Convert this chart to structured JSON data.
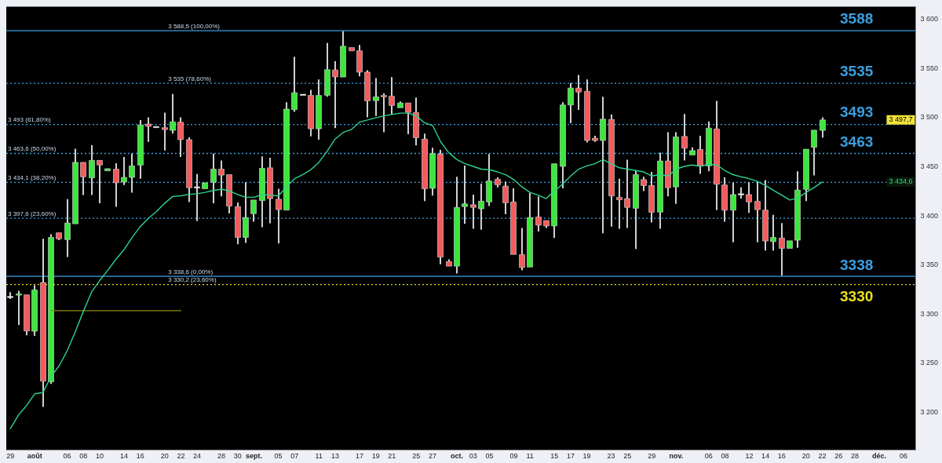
{
  "chart_data": {
    "type": "candlestick",
    "categories": [
      "29",
      null,
      null,
      "août",
      null,
      null,
      null,
      "06",
      null,
      "08",
      null,
      "10",
      null,
      null,
      "14",
      null,
      "16",
      null,
      null,
      "20",
      null,
      "22",
      null,
      "24",
      null,
      null,
      "28",
      null,
      "30",
      null,
      "sept.",
      null,
      null,
      "05",
      null,
      "07",
      null,
      null,
      "11",
      null,
      "13",
      null,
      null,
      "17",
      null,
      "19",
      null,
      "21",
      null,
      null,
      "25",
      null,
      "27",
      null,
      null,
      "oct.",
      null,
      "03",
      null,
      "05",
      null,
      null,
      "09",
      null,
      "11",
      null,
      null,
      "15",
      null,
      "17",
      null,
      "19",
      null,
      null,
      "23",
      null,
      "25",
      null,
      null,
      "29",
      null,
      null,
      "nov.",
      null,
      null,
      null,
      "06",
      null,
      "08",
      null,
      null,
      "12",
      null,
      "14",
      null,
      "16",
      null,
      null,
      "20",
      null,
      "22",
      null,
      "26",
      null,
      "28",
      null,
      null,
      "déc.",
      null,
      null,
      "06",
      null
    ],
    "series": [
      {
        "ohlc": [
          [
            3317.5,
            3322.5,
            3315.5,
            3317.5
          ],
          [
            3319.5,
            3323.8,
            3289,
            3320.5
          ],
          [
            3319.7,
            3320,
            3278.6,
            3283
          ],
          [
            3282.7,
            3329.4,
            3278,
            3324.7
          ],
          [
            3332.2,
            3376.7,
            3205.7,
            3231.9
          ],
          [
            3231.3,
            3381.4,
            3229.1,
            3378.1
          ],
          [
            3382.8,
            3383.6,
            3375.3,
            3376.7
          ],
          [
            3375.9,
            3417,
            3358.1,
            3392.8
          ],
          [
            3392,
            3468.4,
            3391.4,
            3454.5
          ],
          [
            3454.5,
            3455.4,
            3421.2,
            3439.8
          ],
          [
            3438.7,
            3472,
            3421.2,
            3456.5
          ],
          [
            3456.5,
            3457.3,
            3412.8,
            3451.8
          ],
          [
            3445.9,
            3449,
            3444.8,
            3448.1
          ],
          [
            3447.6,
            3453.7,
            3409.2,
            3433.7
          ],
          [
            3434.5,
            3460.1,
            3431.5,
            3439.2
          ],
          [
            3439.2,
            3463.4,
            3423.7,
            3450.9
          ],
          [
            3451.7,
            3497.6,
            3437.9,
            3492.6
          ],
          [
            3493.5,
            3500.4,
            3475.4,
            3491.2
          ],
          [
            3490.4,
            3491.5,
            3489,
            3490.4
          ],
          [
            3489.8,
            3505.1,
            3466.5,
            3487.9
          ],
          [
            3487.1,
            3524,
            3483.7,
            3495.7
          ],
          [
            3495.4,
            3500.4,
            3460.1,
            3477.6
          ],
          [
            3477.6,
            3480,
            3414,
            3428.7
          ],
          [
            3429,
            3442.6,
            3394.8,
            3429
          ],
          [
            3427.6,
            3434.5,
            3427,
            3433.7
          ],
          [
            3434.2,
            3463.4,
            3412.8,
            3447.6
          ],
          [
            3447.6,
            3456.5,
            3419.8,
            3441.5
          ],
          [
            3442,
            3442.5,
            3402.5,
            3410
          ],
          [
            3409.5,
            3413.7,
            3371.1,
            3378.1
          ],
          [
            3378.1,
            3434.2,
            3372.5,
            3398.4
          ],
          [
            3402.3,
            3416.2,
            3394.2,
            3416.2
          ],
          [
            3415.6,
            3460.7,
            3388.6,
            3448.4
          ],
          [
            3449,
            3459.3,
            3392.5,
            3417.6
          ],
          [
            3417,
            3427.6,
            3371.9,
            3406.4
          ],
          [
            3405.9,
            3515.7,
            3405.9,
            3508.7
          ],
          [
            3508.2,
            3562.1,
            3506,
            3525.4
          ],
          [
            3523.2,
            3525,
            3521.5,
            3523.2
          ],
          [
            3522.6,
            3528.2,
            3481,
            3488.7
          ],
          [
            3488.7,
            3538.8,
            3477.6,
            3522.6
          ],
          [
            3522.8,
            3576,
            3521.2,
            3548.8
          ],
          [
            3548.5,
            3557.4,
            3489.3,
            3541.5
          ],
          [
            3541.3,
            3588,
            3540.7,
            3572.7
          ],
          [
            3571.3,
            3572.1,
            3567.7,
            3568
          ],
          [
            3568,
            3574,
            3542.1,
            3546.3
          ],
          [
            3546.3,
            3548.2,
            3500.4,
            3517.1
          ],
          [
            3517.3,
            3540.2,
            3501.8,
            3521.2
          ],
          [
            3522.6,
            3524.9,
            3485.1,
            3521.2
          ],
          [
            3521.8,
            3541.3,
            3503.2,
            3512.4
          ],
          [
            3510.1,
            3516.5,
            3509.3,
            3514.9
          ],
          [
            3514.9,
            3515.7,
            3483.2,
            3505.4
          ],
          [
            3505.1,
            3520.4,
            3471.8,
            3479.6
          ],
          [
            3478.2,
            3483.7,
            3415,
            3427.6
          ],
          [
            3428.1,
            3469.3,
            3420.6,
            3463.4
          ],
          [
            3462.9,
            3467.1,
            3350.8,
            3358.1
          ],
          [
            3353.6,
            3355.8,
            3348,
            3348.9
          ],
          [
            3348.9,
            3439.8,
            3341.4,
            3408.7
          ],
          [
            3409.5,
            3451.2,
            3392,
            3412.3
          ],
          [
            3411.4,
            3421.7,
            3387,
            3408.7
          ],
          [
            3407.3,
            3432.8,
            3385.9,
            3415
          ],
          [
            3414.2,
            3462.9,
            3410,
            3435.6
          ],
          [
            3437.3,
            3439.2,
            3429,
            3431.7
          ],
          [
            3430.3,
            3435,
            3401.7,
            3413.4
          ],
          [
            3414.2,
            3428.1,
            3360.8,
            3360.8
          ],
          [
            3360.6,
            3387.8,
            3344.7,
            3347.5
          ],
          [
            3348,
            3423.4,
            3348,
            3398.4
          ],
          [
            3398.9,
            3419.8,
            3384.2,
            3390.6
          ],
          [
            3395.3,
            3395.3,
            3387.8,
            3389.8
          ],
          [
            3389.8,
            3453.1,
            3377.5,
            3453.1
          ],
          [
            3450.4,
            3515.7,
            3428.1,
            3512.9
          ],
          [
            3512.9,
            3535.2,
            3494.3,
            3530.1
          ],
          [
            3530.1,
            3543.5,
            3507.9,
            3526
          ],
          [
            3526.8,
            3538.8,
            3474.8,
            3476.8
          ],
          [
            3479,
            3481.5,
            3475.4,
            3476.8
          ],
          [
            3476.8,
            3521.3,
            3382.3,
            3498.5
          ],
          [
            3498.2,
            3503.2,
            3389.2,
            3420.3
          ],
          [
            3418.9,
            3437.9,
            3387,
            3416.4
          ],
          [
            3417.6,
            3457.3,
            3387.8,
            3408.7
          ],
          [
            3407.8,
            3446.2,
            3366.4,
            3442
          ],
          [
            3437,
            3439.8,
            3425.3,
            3430.9
          ],
          [
            3430.9,
            3444.8,
            3393.4,
            3403.7
          ],
          [
            3403.9,
            3464.3,
            3387,
            3455.9
          ],
          [
            3455.9,
            3485.1,
            3419.8,
            3428.7
          ],
          [
            3429.5,
            3485.1,
            3412.3,
            3480.4
          ],
          [
            3480.9,
            3503.7,
            3456.5,
            3469
          ],
          [
            3462,
            3469.8,
            3461.5,
            3466.5
          ],
          [
            3467.6,
            3481.5,
            3442.9,
            3450.9
          ],
          [
            3450.9,
            3496.2,
            3445.4,
            3489.3
          ],
          [
            3488.5,
            3517.1,
            3405.9,
            3432.3
          ],
          [
            3431.5,
            3439.2,
            3394.2,
            3405.9
          ],
          [
            3405.9,
            3433.7,
            3373.1,
            3421.7
          ],
          [
            3422,
            3429,
            3417.6,
            3422
          ],
          [
            3421.7,
            3434.2,
            3403.1,
            3414.2
          ],
          [
            3414.8,
            3434.5,
            3373.1,
            3406.4
          ],
          [
            3405.9,
            3436.5,
            3364.7,
            3374.5
          ],
          [
            3373.9,
            3401.2,
            3364.7,
            3378.1
          ],
          [
            3377.5,
            3392.8,
            3339.2,
            3367
          ],
          [
            3367,
            3375.3,
            3366.4,
            3374.7
          ],
          [
            3375.3,
            3445.4,
            3367.5,
            3426.3
          ],
          [
            3427,
            3468.4,
            3415,
            3467.9
          ],
          [
            3469.8,
            3488.5,
            3441.2,
            3487.3
          ],
          [
            3487.1,
            3500.4,
            3479.5,
            3497.7
          ],
          null,
          null,
          null,
          null,
          null,
          null,
          null,
          null,
          null,
          null,
          null
        ],
        "colors": [
          "#ffffff",
          "#3ce63c",
          "#f25c5c",
          "#3ce63c",
          "#f25c5c",
          "#3ce63c",
          "#f25c5c",
          "#3ce63c",
          "#3ce63c",
          "#f25c5c",
          "#3ce63c",
          "#f25c5c",
          "#3ce63c",
          "#f25c5c",
          "#3ce63c",
          "#3ce63c",
          "#3ce63c",
          "#f25c5c",
          "#ffffff",
          "#f25c5c",
          "#3ce63c",
          "#f25c5c",
          "#f25c5c",
          "#ffffff",
          "#3ce63c",
          "#3ce63c",
          "#f25c5c",
          "#f25c5c",
          "#f25c5c",
          "#3ce63c",
          "#3ce63c",
          "#3ce63c",
          "#f25c5c",
          "#f25c5c",
          "#3ce63c",
          "#3ce63c",
          "#ffffff",
          "#f25c5c",
          "#3ce63c",
          "#3ce63c",
          "#f25c5c",
          "#3ce63c",
          "#f25c5c",
          "#f25c5c",
          "#f25c5c",
          "#3ce63c",
          "#f25c5c",
          "#f25c5c",
          "#3ce63c",
          "#f25c5c",
          "#f25c5c",
          "#f25c5c",
          "#3ce63c",
          "#f25c5c",
          "#f25c5c",
          "#3ce63c",
          "#3ce63c",
          "#f25c5c",
          "#3ce63c",
          "#3ce63c",
          "#f25c5c",
          "#f25c5c",
          "#f25c5c",
          "#f25c5c",
          "#3ce63c",
          "#f25c5c",
          "#f25c5c",
          "#3ce63c",
          "#3ce63c",
          "#3ce63c",
          "#f25c5c",
          "#f25c5c",
          "#f25c5c",
          "#3ce63c",
          "#f25c5c",
          "#f25c5c",
          "#f25c5c",
          "#3ce63c",
          "#f25c5c",
          "#f25c5c",
          "#3ce63c",
          "#f25c5c",
          "#3ce63c",
          "#f25c5c",
          "#3ce63c",
          "#f25c5c",
          "#3ce63c",
          "#f25c5c",
          "#f25c5c",
          "#3ce63c",
          "#ffffff",
          "#f25c5c",
          "#f25c5c",
          "#f25c5c",
          "#3ce63c",
          "#f25c5c",
          "#3ce63c",
          "#3ce63c",
          "#3ce63c",
          "#3ce63c",
          "#3ce63c",
          null,
          null,
          null,
          null,
          null,
          null,
          null,
          null,
          null,
          null,
          null
        ]
      },
      {
        "type": "line",
        "color": "#2ed38a",
        "values": [
          3183.5,
          3197.4,
          3207.1,
          3219,
          3220.2,
          3236.3,
          3247.4,
          3262.7,
          3282.2,
          3303,
          3322.5,
          3334.2,
          3344.7,
          3355.8,
          3365.6,
          3378.1,
          3389.2,
          3397.5,
          3404.5,
          3412.8,
          3419.8,
          3420.5,
          3422,
          3422.6,
          3424,
          3425.9,
          3427.3,
          3425.3,
          3421.7,
          3419,
          3419,
          3421.7,
          3421.2,
          3420.3,
          3429.5,
          3437.9,
          3442,
          3447,
          3454.5,
          3465.7,
          3478.2,
          3485,
          3487.9,
          3495.4,
          3497.6,
          3499.8,
          3501.8,
          3503.2,
          3504.6,
          3504.6,
          3501.8,
          3494.8,
          3492.1,
          3475.4,
          3464.3,
          3457.3,
          3453.1,
          3450.4,
          3447.6,
          3447,
          3444.8,
          3442,
          3437,
          3429.5,
          3424,
          3421.2,
          3417.6,
          3425.3,
          3432.3,
          3440.6,
          3447.6,
          3450.9,
          3453.1,
          3457.3,
          3453.1,
          3449,
          3447.6,
          3446.2,
          3444.8,
          3440.6,
          3442,
          3440.6,
          3447.6,
          3450.4,
          3451.8,
          3450.4,
          3452.6,
          3451.8,
          3446.2,
          3442,
          3439.8,
          3437.9,
          3435.1,
          3430.9,
          3425.9,
          3421.2,
          3416.2,
          3418.4,
          3424,
          3429,
          3434.6,
          null,
          null,
          null,
          null,
          null,
          null,
          null,
          null,
          null,
          null,
          null
        ]
      },
      {
        "type": "line",
        "color": "#8a8a1a",
        "values": [
          null,
          null,
          null,
          null,
          null,
          3303.6,
          3303.6,
          3303.6,
          3303.6,
          3303.6,
          3303.6,
          3303.6,
          3303.6,
          3303.6,
          3303.6,
          3303.6,
          3303.6,
          3303.6,
          3303.6,
          3303.6,
          3303.6,
          3303.6,
          null,
          null,
          null,
          null,
          null,
          null,
          null,
          null,
          null,
          null,
          null,
          null,
          null,
          null,
          null,
          null,
          null,
          null,
          null,
          null,
          null,
          null,
          null,
          null,
          null,
          null,
          null,
          null,
          null,
          null,
          null,
          null,
          null,
          null,
          null,
          null,
          null,
          null,
          null,
          null,
          null,
          null,
          null,
          null,
          null,
          null,
          null,
          null,
          null,
          null,
          null,
          null,
          null,
          null,
          null,
          null,
          null,
          null,
          null,
          null,
          null,
          null,
          null,
          null,
          null,
          null,
          null,
          null,
          null,
          null,
          null,
          null,
          null,
          null,
          null,
          null,
          null,
          null,
          null,
          null,
          null,
          null,
          null,
          null,
          null,
          null,
          null,
          null,
          null,
          null
        ]
      }
    ],
    "ylim": [
      3162,
      3613
    ],
    "yticks": [
      {
        "value": 3200,
        "label": "3 200"
      },
      {
        "value": 3250,
        "label": "3 250"
      },
      {
        "value": 3300,
        "label": "3 300"
      },
      {
        "value": 3350,
        "label": "3 350"
      },
      {
        "value": 3400,
        "label": "3 400"
      },
      {
        "value": 3450,
        "label": "3 450"
      },
      {
        "value": 3500,
        "label": "3 500"
      },
      {
        "value": 3550,
        "label": "3 550"
      },
      {
        "value": 3600,
        "label": "3 600"
      }
    ],
    "ref_lines": [
      {
        "axis": "y",
        "value": 3588.5,
        "label": "3 588,5 (100,00%)",
        "color": "#3a9fe0",
        "line_style": "solid"
      },
      {
        "axis": "y",
        "value": 3535,
        "label": "3 535 (78,60%)",
        "color": "#3a9fe0",
        "line_style": "dotted"
      },
      {
        "axis": "y",
        "value": 3493,
        "label": "3 493 (61,80%)",
        "color": "#3a9fe0",
        "line_style": "dotted"
      },
      {
        "axis": "y",
        "value": 3463.6,
        "label": "3 463,6 (50,00%)",
        "color": "#3a9fe0",
        "line_style": "dotted"
      },
      {
        "axis": "y",
        "value": 3434.1,
        "label": "3 434,1 (38,20%)",
        "color": "#3a9fe0",
        "line_style": "dotted"
      },
      {
        "axis": "y",
        "value": 3397.6,
        "label": "3 397,6 (23,60%)",
        "color": "#3a9fe0",
        "line_style": "dotted"
      },
      {
        "axis": "y",
        "value": 3338.6,
        "label": "3 338,6 (0,00%)",
        "color": "#3a9fe0",
        "line_style": "solid"
      },
      {
        "axis": "y",
        "value": 3330.2,
        "label": "3 330,2 (23,60%)",
        "color": "#e8e020",
        "line_style": "dotted"
      }
    ],
    "annotations": [
      {
        "text": "3588",
        "y": 3588
      },
      {
        "text": "3535",
        "y": 3535
      },
      {
        "text": "3493",
        "y": 3493
      },
      {
        "text": "3463",
        "y": 3463
      },
      {
        "text": "3338",
        "y": 3338
      },
      {
        "text": "3330",
        "y": 3330
      },
      {
        "text": "3 497,7",
        "y": 3497.7
      },
      {
        "text": "3 434,6",
        "y": 3434.6
      }
    ]
  }
}
